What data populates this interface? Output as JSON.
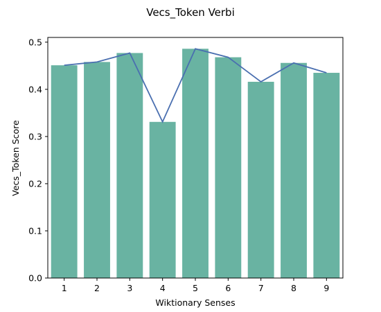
{
  "chart_data": {
    "type": "bar",
    "title": "Vecs_Token Verbi",
    "xlabel": "Wiktionary Senses",
    "ylabel": "Vecs_Token Score",
    "categories": [
      "1",
      "2",
      "3",
      "4",
      "5",
      "6",
      "7",
      "8",
      "9"
    ],
    "values": [
      0.451,
      0.458,
      0.477,
      0.331,
      0.486,
      0.468,
      0.416,
      0.456,
      0.435
    ],
    "overlay_line": {
      "type": "line",
      "values": [
        0.451,
        0.458,
        0.477,
        0.331,
        0.486,
        0.468,
        0.416,
        0.456,
        0.435
      ]
    },
    "ylim": [
      0,
      0.51
    ],
    "yticks": [
      "0.0",
      "0.1",
      "0.2",
      "0.3",
      "0.4",
      "0.5"
    ],
    "grid": false,
    "legend": "none",
    "colors": {
      "bar": "#69b3a2",
      "line": "#4a6fb0"
    }
  }
}
